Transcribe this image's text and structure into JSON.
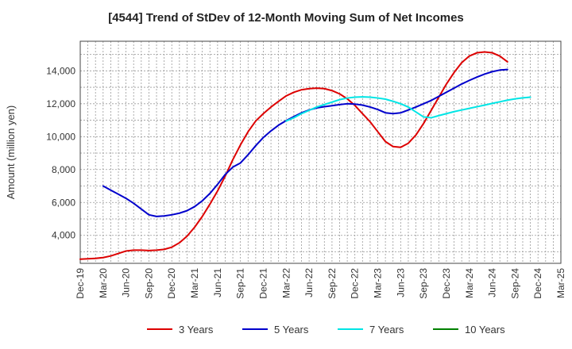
{
  "title": "[4544]  Trend of StDev of 12-Month Moving Sum of Net Incomes",
  "chart_data": {
    "type": "line",
    "title": "[4544]  Trend of StDev of 12-Month Moving Sum of Net Incomes",
    "xlabel": "",
    "ylabel": "Amount (million yen)",
    "x_ticks": [
      "Dec-19",
      "Mar-20",
      "Jun-20",
      "Sep-20",
      "Dec-20",
      "Mar-21",
      "Jun-21",
      "Sep-21",
      "Dec-21",
      "Mar-22",
      "Jun-22",
      "Sep-22",
      "Dec-22",
      "Mar-23",
      "Jun-23",
      "Sep-23",
      "Dec-23",
      "Mar-24",
      "Jun-24",
      "Sep-24",
      "Dec-24",
      "Mar-25"
    ],
    "y_ticks": [
      4000,
      6000,
      8000,
      10000,
      12000,
      14000
    ],
    "y_tick_labels": [
      "4,000",
      "6,000",
      "8,000",
      "10,000",
      "12,000",
      "14,000"
    ],
    "ylim": [
      2300,
      15800
    ],
    "grid": true,
    "legend_position": "bottom",
    "series": [
      {
        "name": "3 Years",
        "color": "#dd0000",
        "start_index": 0,
        "values": [
          2550,
          2580,
          2600,
          2650,
          2750,
          2900,
          3050,
          3100,
          3100,
          3080,
          3100,
          3150,
          3280,
          3550,
          3950,
          4500,
          5150,
          5900,
          6700,
          7600,
          8600,
          9500,
          10300,
          10950,
          11400,
          11800,
          12150,
          12480,
          12700,
          12850,
          12920,
          12950,
          12920,
          12800,
          12600,
          12300,
          11900,
          11400,
          10900,
          10300,
          9700,
          9400,
          9350,
          9600,
          10100,
          10800,
          11600,
          12400,
          13200,
          13900,
          14500,
          14900,
          15100,
          15150,
          15100,
          14900,
          14550
        ]
      },
      {
        "name": "5 Years",
        "color": "#0000cc",
        "start_index": 3,
        "values": [
          7000,
          6750,
          6500,
          6250,
          5950,
          5600,
          5250,
          5150,
          5180,
          5250,
          5350,
          5500,
          5750,
          6100,
          6550,
          7100,
          7700,
          8150,
          8400,
          8900,
          9450,
          9950,
          10350,
          10700,
          10980,
          11220,
          11450,
          11620,
          11750,
          11820,
          11880,
          11950,
          12000,
          11980,
          11920,
          11800,
          11650,
          11450,
          11400,
          11450,
          11620,
          11800,
          12000,
          12200,
          12450,
          12700,
          12950,
          13200,
          13420,
          13620,
          13800,
          13950,
          14050,
          14080
        ]
      },
      {
        "name": "7 Years",
        "color": "#00e5e5",
        "start_index": 27,
        "values": [
          10950,
          11150,
          11400,
          11600,
          11800,
          11950,
          12100,
          12250,
          12350,
          12400,
          12420,
          12400,
          12350,
          12280,
          12150,
          12000,
          11800,
          11500,
          11200,
          11150,
          11280,
          11400,
          11520,
          11620,
          11720,
          11820,
          11920,
          12020,
          12120,
          12220,
          12300,
          12360,
          12400
        ]
      },
      {
        "name": "10 Years",
        "color": "#008000",
        "start_index": 0,
        "values": []
      }
    ]
  }
}
